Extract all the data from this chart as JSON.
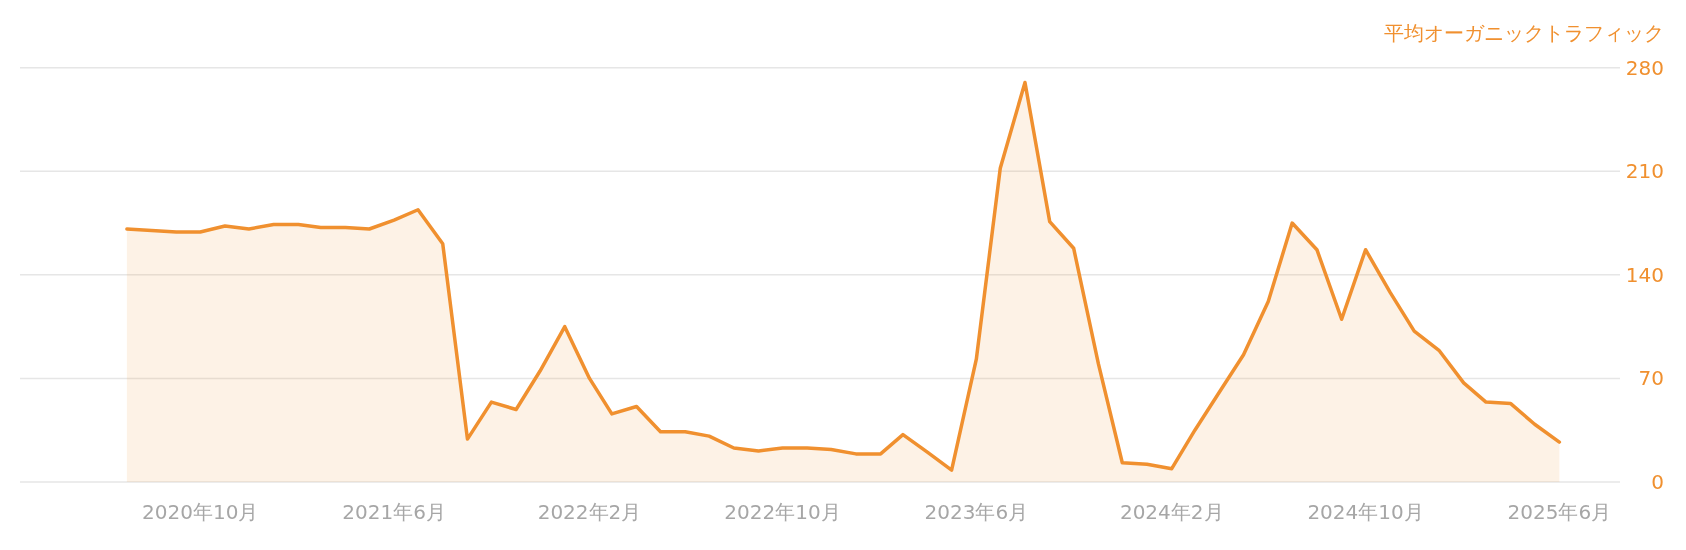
{
  "chart_data": {
    "type": "area",
    "ylabel": "平均オーガニックトラフィック",
    "x": [
      "2020-07",
      "2020-08",
      "2020-09",
      "2020-10",
      "2020-11",
      "2020-12",
      "2021-01",
      "2021-02",
      "2021-03",
      "2021-04",
      "2021-05",
      "2021-06",
      "2021-07",
      "2021-08",
      "2021-09",
      "2021-10",
      "2021-11",
      "2021-12",
      "2022-01",
      "2022-02",
      "2022-03",
      "2022-04",
      "2022-05",
      "2022-06",
      "2022-07",
      "2022-08",
      "2022-09",
      "2022-10",
      "2022-11",
      "2022-12",
      "2023-01",
      "2023-02",
      "2023-03",
      "2023-04",
      "2023-05",
      "2023-06",
      "2023-07",
      "2023-08",
      "2023-09",
      "2023-10",
      "2023-11",
      "2023-12",
      "2024-01",
      "2024-02",
      "2024-03",
      "2024-04",
      "2024-05",
      "2024-06",
      "2024-07",
      "2024-08",
      "2024-09",
      "2024-10",
      "2024-11",
      "2024-12",
      "2025-01",
      "2025-02",
      "2025-03",
      "2025-04",
      "2025-05",
      "2025-06"
    ],
    "series": [
      {
        "color": "#f0902f",
        "values": [
          171,
          170,
          169,
          169,
          173,
          171,
          174,
          174,
          172,
          172,
          171,
          177,
          184,
          161,
          29,
          54,
          49,
          75,
          105,
          70,
          46,
          51,
          34,
          34,
          31,
          23,
          21,
          23,
          23,
          22,
          19,
          19,
          32,
          20,
          8,
          83,
          212,
          270,
          176,
          158,
          80,
          13,
          12,
          9,
          35,
          61,
          86,
          122,
          175,
          157,
          110,
          157,
          128,
          102,
          89,
          67,
          54,
          53,
          39,
          27
        ]
      }
    ],
    "xlim": [
      "2020-02-18",
      "2025-08-16"
    ],
    "ylim": [
      0,
      280
    ],
    "xticks": [
      {
        "value": "2020-10",
        "label": "2020年10月"
      },
      {
        "value": "2021-06",
        "label": "2021年6月"
      },
      {
        "value": "2022-02",
        "label": "2022年2月"
      },
      {
        "value": "2022-10",
        "label": "2022年10月"
      },
      {
        "value": "2023-06",
        "label": "2023年6月"
      },
      {
        "value": "2024-02",
        "label": "2024年2月"
      },
      {
        "value": "2024-10",
        "label": "2024年10月"
      },
      {
        "value": "2025-06",
        "label": "2025年6月"
      }
    ],
    "yticks": [
      0,
      70,
      140,
      210,
      280
    ],
    "grid": "y"
  }
}
